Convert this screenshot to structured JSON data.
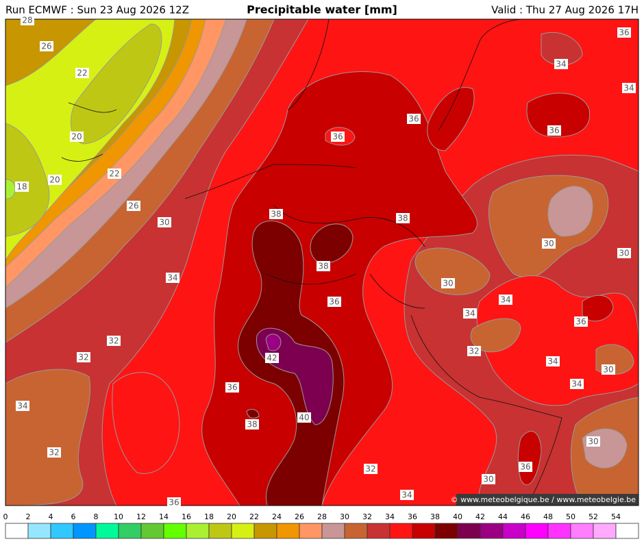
{
  "header": {
    "run": "Run ECMWF : Sun 23 Aug 2026 12Z",
    "title": "Precipitable water [mm]",
    "valid": "Valid : Thu 27 Aug 2026 17H"
  },
  "map": {
    "contour_labels": [
      28,
      26,
      22,
      20,
      22,
      20,
      18,
      26,
      30,
      34,
      32,
      32,
      34,
      32,
      36,
      38,
      38,
      36,
      42,
      36,
      38,
      40,
      36,
      36,
      38,
      36,
      34,
      34,
      36,
      30,
      30,
      30,
      34,
      34,
      36,
      32,
      30,
      34,
      34,
      30,
      36,
      30,
      32,
      34
    ]
  },
  "credit": "© www.meteobelgique.be / www.meteobelgie.be",
  "colorbar": {
    "ticks": [
      0,
      2,
      4,
      6,
      8,
      10,
      12,
      14,
      16,
      18,
      20,
      22,
      24,
      26,
      28,
      30,
      32,
      34,
      36,
      38,
      40,
      42,
      44,
      46,
      48,
      50,
      52,
      54
    ],
    "colors": [
      "#ffffff",
      "#96e6ff",
      "#30c8ff",
      "#0096ff",
      "#00fa9a",
      "#32cd64",
      "#64c832",
      "#64ff00",
      "#aaf032",
      "#bec814",
      "#d7f014",
      "#c89600",
      "#f09600",
      "#ff9664",
      "#c89696",
      "#c86432",
      "#c83232",
      "#ff1414",
      "#c80000",
      "#7d0000",
      "#7d0050",
      "#9b0082",
      "#c800c8",
      "#ff00ff",
      "#ff32ff",
      "#ff7dff",
      "#ffaaff",
      "#ffffff"
    ]
  }
}
